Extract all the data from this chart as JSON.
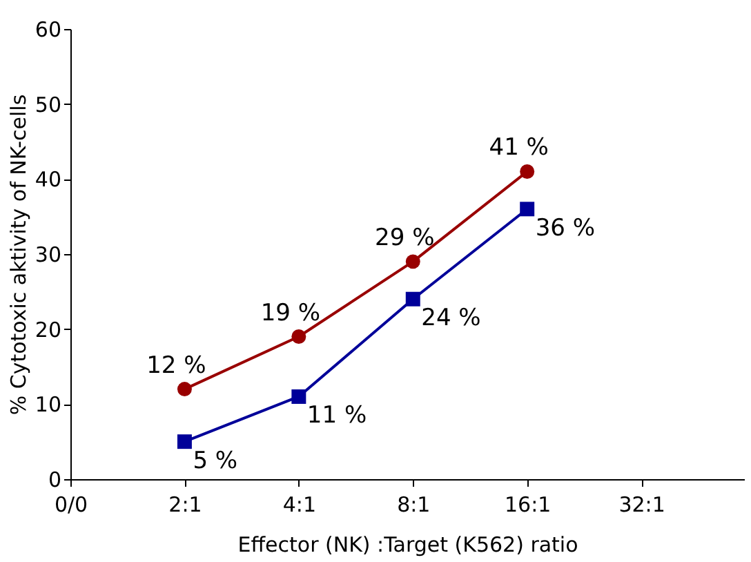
{
  "chart_data": {
    "type": "line",
    "xlabel": "Effector (NK) :Target (K562) ratio",
    "ylabel": "% Cytotoxic aktivity of NK-cells",
    "categories": [
      "0/0",
      "2:1",
      "4:1",
      "8:1",
      "16:1",
      "32:1"
    ],
    "series": [
      {
        "color": "#990000",
        "marker": "circle",
        "values": [
          null,
          12,
          19,
          29,
          41,
          null
        ],
        "value_labels": [
          null,
          "12 %",
          "19 %",
          "29 %",
          "41 %",
          null
        ]
      },
      {
        "color": "#000099",
        "marker": "square",
        "values": [
          null,
          5,
          11,
          24,
          36,
          null
        ],
        "value_labels": [
          null,
          "5 %",
          "11 %",
          "24 %",
          "36 %",
          null
        ]
      }
    ],
    "ylim": [
      0,
      60
    ],
    "yticks": [
      0,
      10,
      20,
      30,
      40,
      50,
      60
    ],
    "grid": false
  }
}
